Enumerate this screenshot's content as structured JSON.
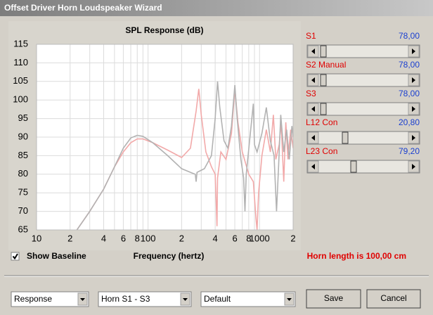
{
  "window": {
    "title": "Offset Driver Horn Loudspeaker Wizard"
  },
  "chart_data": {
    "type": "line",
    "title": "SPL Response (dB)",
    "xlabel": "Frequency (hertz)",
    "xscale": "log",
    "xlim": [
      10,
      2000
    ],
    "ylim": [
      65,
      115
    ],
    "yticks": [
      65,
      70,
      75,
      80,
      85,
      90,
      95,
      100,
      105,
      110,
      115
    ],
    "xticks": [
      10,
      {
        "value": 20,
        "label": "2"
      },
      {
        "value": 40,
        "label": "4"
      },
      {
        "value": 60,
        "label": "6"
      },
      {
        "value": 80,
        "label": "8"
      },
      100,
      {
        "value": 200,
        "label": "2"
      },
      {
        "value": 400,
        "label": "4"
      },
      {
        "value": 600,
        "label": "6"
      },
      {
        "value": 800,
        "label": "8"
      },
      1000,
      {
        "value": 2000,
        "label": "2"
      }
    ],
    "minor_xticks": [
      30,
      50,
      70,
      90,
      300,
      500,
      700,
      900
    ],
    "grid": true,
    "series": [
      {
        "color": "#f2a9a9",
        "x": [
          23,
          30,
          40,
          50,
          60,
          70,
          80,
          90,
          110,
          150,
          200,
          240,
          270,
          285,
          300,
          330,
          370,
          400,
          410,
          415,
          420,
          450,
          500,
          560,
          600,
          640,
          700,
          800,
          880,
          930,
          950,
          980,
          1050,
          1150,
          1250,
          1330,
          1400,
          1500,
          1560,
          1650,
          1720,
          1800,
          1900,
          2000
        ],
        "values": [
          65,
          70,
          76,
          82,
          86,
          88.5,
          89.5,
          89.5,
          88.5,
          86.5,
          84.5,
          87,
          97,
          103,
          96,
          86,
          82,
          80,
          71,
          66,
          79,
          86,
          84,
          91,
          103,
          94,
          86,
          80,
          78,
          68,
          65,
          75,
          85,
          92,
          86,
          96,
          84,
          88,
          94,
          78,
          94,
          84,
          92,
          87
        ]
      },
      {
        "color": "#b2b2b2",
        "x": [
          23,
          30,
          40,
          50,
          60,
          70,
          80,
          90,
          110,
          150,
          200,
          250,
          265,
          270,
          275,
          320,
          370,
          400,
          420,
          440,
          480,
          520,
          560,
          600,
          630,
          680,
          720,
          740,
          760,
          820,
          880,
          900,
          950,
          1050,
          1150,
          1250,
          1350,
          1420,
          1480,
          1550,
          1650,
          1750,
          1850,
          1950,
          2000
        ],
        "values": [
          65,
          70,
          76,
          82,
          87,
          89.8,
          90.5,
          90.2,
          88.5,
          85,
          81.5,
          80.3,
          80,
          78,
          80.5,
          81.5,
          85,
          95,
          105,
          98,
          89,
          87,
          93,
          104,
          95,
          84,
          79,
          70,
          80,
          90,
          99,
          88,
          86,
          91,
          98,
          89,
          85,
          70,
          82,
          96,
          86,
          92,
          84,
          93,
          90
        ]
      }
    ]
  },
  "sliders": [
    {
      "label": "S1",
      "value": "78,00"
    },
    {
      "label": "S2  Manual",
      "value": "78,00"
    },
    {
      "label": "S3",
      "value": "78,00"
    },
    {
      "label": "L12  Con",
      "value": "20,80"
    },
    {
      "label": "L23  Con",
      "value": "79,20"
    }
  ],
  "show_baseline": {
    "label": "Show Baseline",
    "checked": true
  },
  "status": "Horn length is 100,00 cm",
  "dropdowns": [
    "Response",
    "Horn S1 - S3",
    "Default"
  ],
  "buttons": [
    "Save",
    "Cancel"
  ]
}
